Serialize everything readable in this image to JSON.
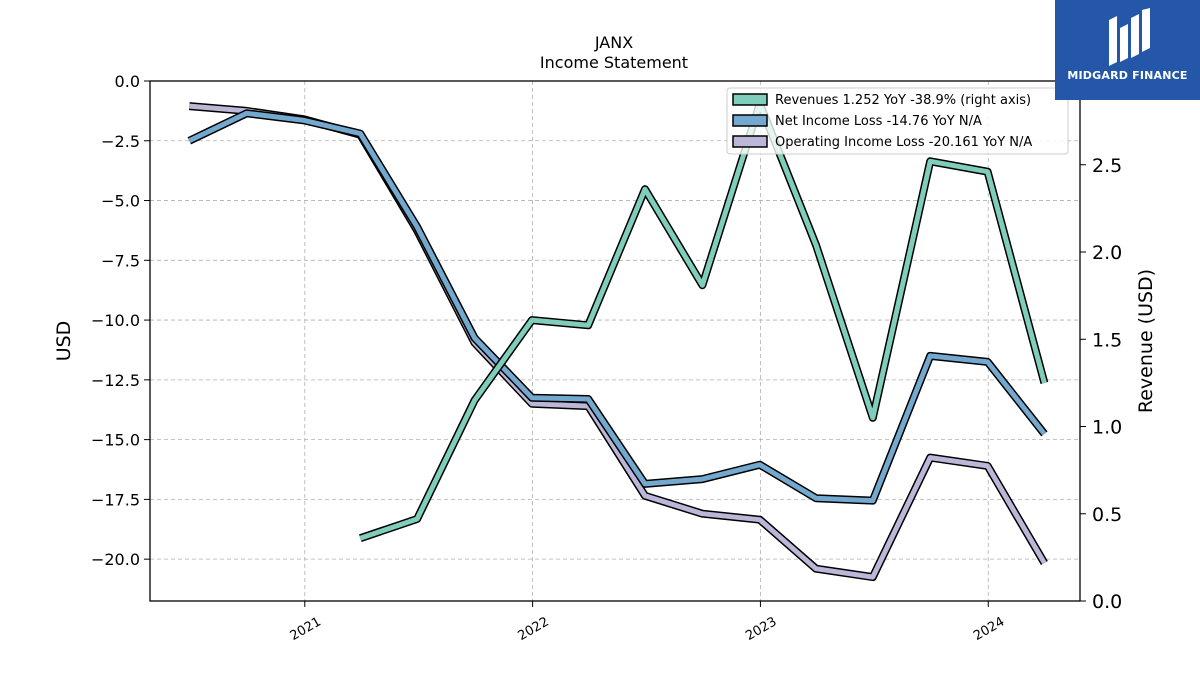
{
  "chart_data": {
    "type": "line",
    "title": "JANX",
    "subtitle": "Income Statement",
    "ylabel_left": "USD",
    "ylabel_right": "Revenue (USD)",
    "ylim_left": [
      -21.75,
      0
    ],
    "ylim_right": [
      0,
      2.98
    ],
    "yticks_left": [
      "0.0",
      "−2.5",
      "−5.0",
      "−7.5",
      "−10.0",
      "−12.5",
      "−15.0",
      "−17.5",
      "−20.0"
    ],
    "yticks_right": [
      "0.0",
      "0.5",
      "1.0",
      "1.5",
      "2.0",
      "2.5"
    ],
    "xticks": [
      "2021",
      "2022",
      "2023",
      "2024"
    ],
    "grid": true,
    "legend_position": "top-right",
    "legend": [
      "Revenues  1.252 YoY -38.9% (right axis)",
      "Net Income Loss  -14.76 YoY N/A",
      "Operating Income Loss  -20.161 YoY N/A"
    ],
    "series": [
      {
        "name": "Revenues",
        "axis": "right",
        "color": "#7fcdbb",
        "x": [
          "2021-03-31",
          "2021-06-30",
          "2021-09-30",
          "2021-12-31",
          "2022-03-31",
          "2022-06-30",
          "2022-09-30",
          "2022-12-31",
          "2023-03-31",
          "2023-06-30",
          "2023-09-30",
          "2023-12-31",
          "2024-03-31"
        ],
        "values": [
          0.36,
          0.47,
          1.15,
          1.61,
          1.58,
          2.36,
          1.81,
          2.85,
          2.04,
          1.05,
          2.52,
          2.46,
          1.25
        ]
      },
      {
        "name": "Net Income Loss",
        "axis": "left",
        "color": "#74a9cf",
        "x": [
          "2020-06-30",
          "2020-09-30",
          "2020-12-31",
          "2021-03-31",
          "2021-06-30",
          "2021-09-30",
          "2021-12-31",
          "2022-03-31",
          "2022-06-30",
          "2022-09-30",
          "2022-12-31",
          "2023-03-31",
          "2023-06-30",
          "2023-09-30",
          "2023-12-31",
          "2024-03-31"
        ],
        "values": [
          -2.5,
          -1.35,
          -1.65,
          -2.2,
          -6.1,
          -10.75,
          -13.25,
          -13.3,
          -16.85,
          -16.65,
          -16.05,
          -17.45,
          -17.55,
          -11.5,
          -11.75,
          -14.76
        ]
      },
      {
        "name": "Operating Income Loss",
        "axis": "left",
        "color": "#bcb7d9",
        "x": [
          "2020-06-30",
          "2020-09-30",
          "2020-12-31",
          "2021-03-31",
          "2021-06-30",
          "2021-09-30",
          "2021-12-31",
          "2022-03-31",
          "2022-06-30",
          "2022-09-30",
          "2022-12-31",
          "2023-03-31",
          "2023-06-30",
          "2023-09-30",
          "2023-12-31",
          "2024-03-31"
        ],
        "values": [
          -1.05,
          -1.25,
          -1.6,
          -2.25,
          -6.25,
          -10.95,
          -13.5,
          -13.6,
          -17.35,
          -18.1,
          -18.35,
          -20.4,
          -20.75,
          -15.75,
          -16.1,
          -20.161
        ]
      }
    ]
  },
  "logo": {
    "text": "MIDGARD FINANCE",
    "color": "#2457a8"
  }
}
